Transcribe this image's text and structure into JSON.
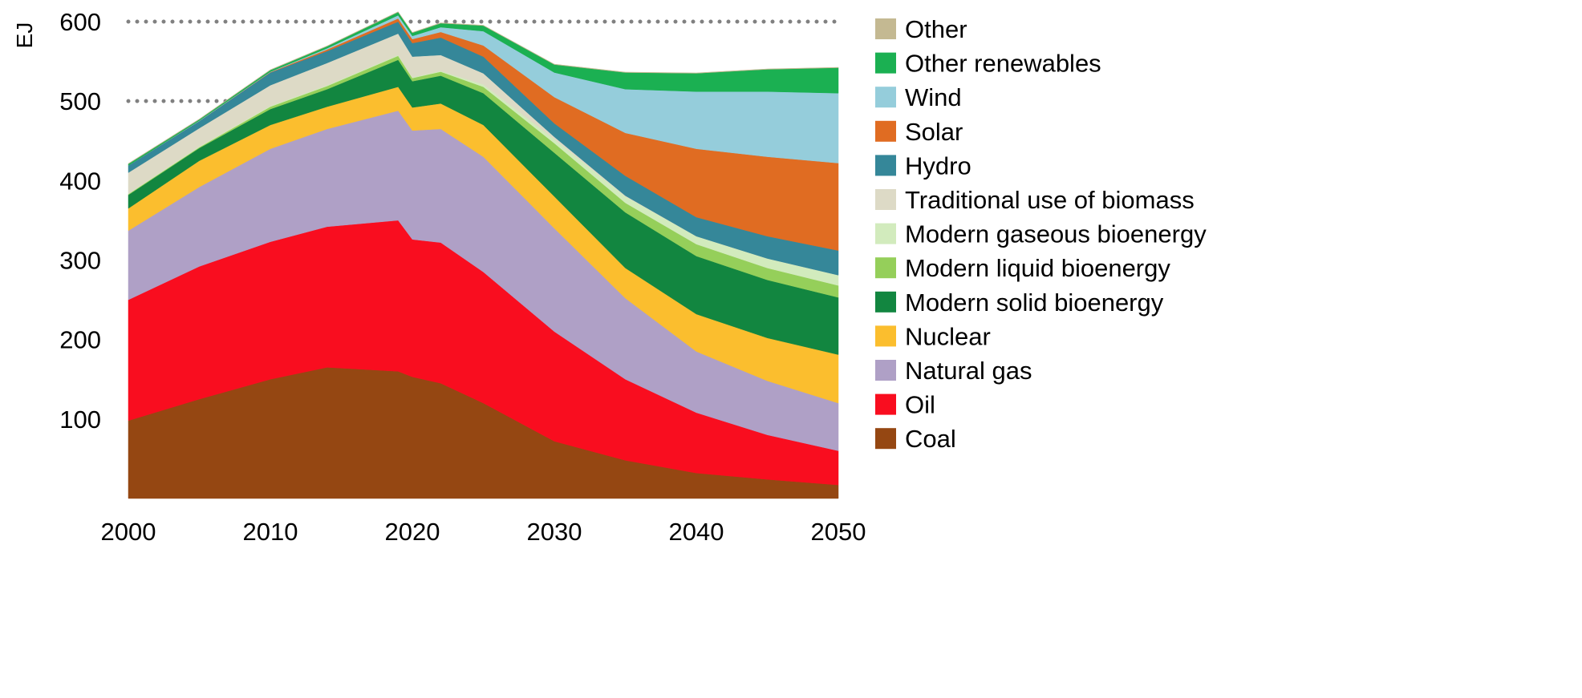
{
  "chart_data": {
    "type": "area",
    "stacked": true,
    "title": "",
    "xlabel": "",
    "ylabel": "EJ",
    "xlim": [
      2000,
      2050
    ],
    "ylim": [
      0,
      620
    ],
    "x_ticks": [
      2000,
      2010,
      2020,
      2030,
      2040,
      2050
    ],
    "y_ticks": [
      100,
      200,
      300,
      400,
      500,
      600
    ],
    "gridlines": {
      "y": [
        500,
        600
      ],
      "style": "dotted"
    },
    "legend_position": "right",
    "x": [
      2000,
      2005,
      2010,
      2014,
      2019,
      2020,
      2022,
      2025,
      2030,
      2035,
      2040,
      2045,
      2050
    ],
    "series": [
      {
        "name": "Coal",
        "color": "#954712",
        "values": [
          98,
          125,
          150,
          165,
          160,
          153,
          145,
          120,
          72,
          48,
          32,
          24,
          17
        ]
      },
      {
        "name": "Oil",
        "color": "#f90d1f",
        "values": [
          152,
          167,
          173,
          177,
          190,
          173,
          177,
          165,
          138,
          102,
          76,
          56,
          43
        ]
      },
      {
        "name": "Natural gas",
        "color": "#afa0c6",
        "values": [
          87,
          100,
          117,
          123,
          138,
          137,
          143,
          145,
          130,
          102,
          77,
          68,
          60
        ]
      },
      {
        "name": "Nuclear",
        "color": "#fbbe2e",
        "values": [
          28,
          33,
          30,
          28,
          30,
          29,
          32,
          40,
          40,
          38,
          47,
          54,
          61
        ]
      },
      {
        "name": "Modern solid bioenergy",
        "color": "#128640",
        "values": [
          17,
          16,
          20,
          22,
          34,
          33,
          35,
          40,
          55,
          70,
          73,
          73,
          72
        ]
      },
      {
        "name": "Modern liquid bioenergy",
        "color": "#95cf5a",
        "values": [
          1,
          1,
          3,
          4,
          5,
          4,
          5,
          8,
          12,
          12,
          15,
          15,
          15
        ]
      },
      {
        "name": "Modern gaseous bioenergy",
        "color": "#d2ebbd",
        "values": [
          0.5,
          1,
          1,
          1,
          1,
          1,
          1,
          3,
          5,
          8,
          10,
          12,
          13
        ]
      },
      {
        "name": "Traditional use of biomass",
        "color": "#dddac6",
        "values": [
          26.5,
          23,
          26,
          28,
          27,
          26,
          20,
          14,
          3,
          1,
          0,
          0,
          0
        ]
      },
      {
        "name": "Hydro",
        "color": "#358799",
        "values": [
          9,
          9,
          16,
          15,
          15,
          17,
          22,
          21,
          17,
          25,
          24,
          28,
          31
        ]
      },
      {
        "name": "Solar",
        "color": "#e06c22",
        "values": [
          0,
          0,
          0.5,
          2,
          4,
          5,
          7,
          14,
          33,
          54,
          86,
          100,
          110
        ]
      },
      {
        "name": "Wind",
        "color": "#95cddb",
        "values": [
          0,
          0.5,
          0.5,
          1.5,
          4,
          4,
          6,
          18,
          31,
          55,
          72,
          82,
          88
        ]
      },
      {
        "name": "Other renewables",
        "color": "#1bb052",
        "values": [
          2,
          1.5,
          2,
          2.5,
          4,
          4,
          5,
          7,
          10,
          21,
          23,
          28,
          32
        ]
      },
      {
        "name": "Other",
        "color": "#c4b992",
        "values": [
          0.5,
          0.5,
          0.5,
          0.5,
          0.5,
          0.5,
          0.5,
          0.5,
          0.5,
          0.5,
          0.5,
          0.5,
          0.5
        ]
      }
    ]
  }
}
